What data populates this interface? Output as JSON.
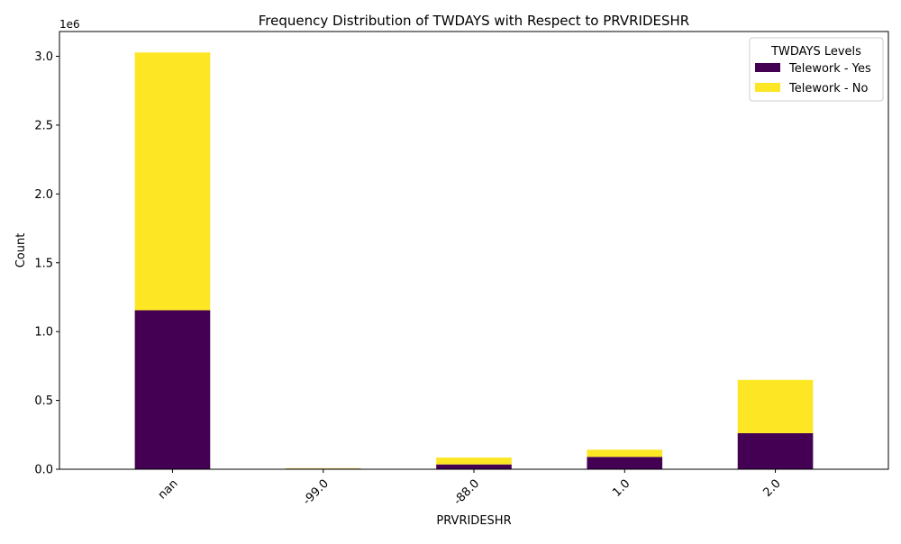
{
  "chart_data": {
    "type": "bar",
    "stacked": true,
    "title": "Frequency Distribution of TWDAYS with Respect to PRVRIDESHR",
    "xlabel": "PRVRIDESHR",
    "ylabel": "Count",
    "y_offset_text": "1e6",
    "categories": [
      "nan",
      "-99.0",
      "-88.0",
      "1.0",
      "2.0"
    ],
    "series": [
      {
        "name": "Telework - Yes",
        "color": "#440154",
        "values": [
          1155000,
          5000,
          35000,
          90000,
          262000
        ]
      },
      {
        "name": "Telework - No",
        "color": "#fde725",
        "values": [
          1873000,
          3000,
          50000,
          52000,
          387000
        ]
      }
    ],
    "ylim": [
      0,
      3180000
    ],
    "y_ticks": [
      0,
      500000,
      1000000,
      1500000,
      2000000,
      2500000,
      3000000
    ],
    "y_tick_labels": [
      "0.0",
      "0.5",
      "1.0",
      "1.5",
      "2.0",
      "2.5",
      "3.0"
    ],
    "legend": {
      "title": "TWDAYS Levels",
      "placement": "top-right"
    },
    "grid": false
  }
}
